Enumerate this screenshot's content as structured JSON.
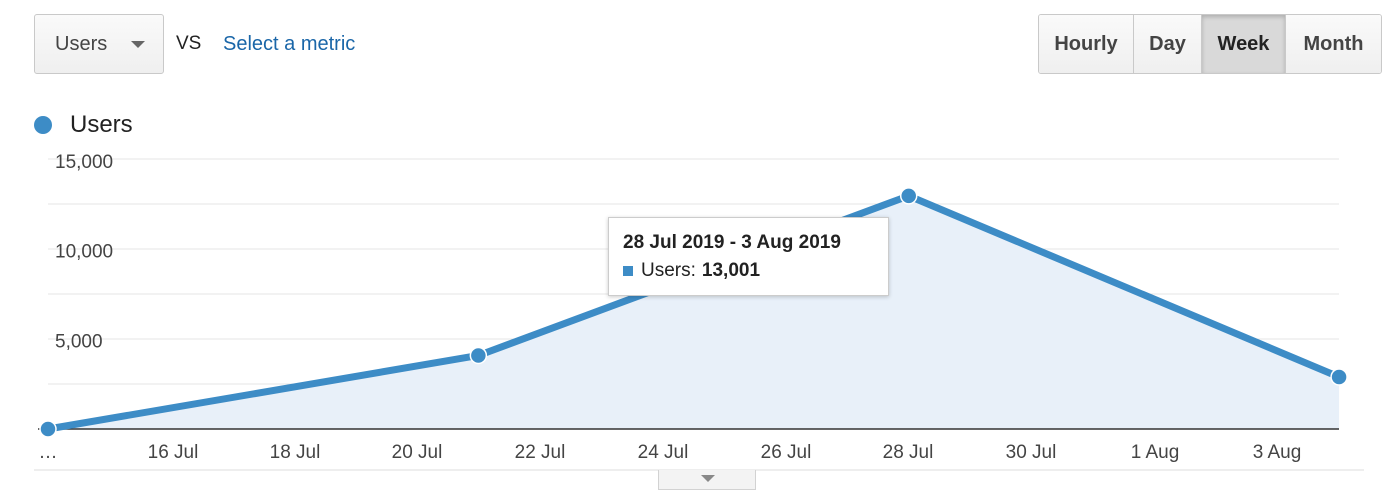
{
  "controls": {
    "primary_metric": "Users",
    "vs_label": "VS",
    "select_metric_label": "Select a metric",
    "range_options": [
      "Hourly",
      "Day",
      "Week",
      "Month"
    ],
    "active_range": "Week"
  },
  "tooltip": {
    "title": "28 Jul 2019 - 3 Aug 2019",
    "series_label": "Users:",
    "value": "13,001"
  },
  "colors": {
    "series": "#3d8cc6",
    "area": "#e8f0f9",
    "link": "#1a66a8"
  },
  "chart_data": {
    "type": "area",
    "series": [
      {
        "name": "Users",
        "points": [
          {
            "x": "2019-07-14",
            "y": 0
          },
          {
            "x": "2019-07-21",
            "y": 4100
          },
          {
            "x": "2019-07-28",
            "y": 13001
          },
          {
            "x": "2019-08-04",
            "y": 2900
          }
        ]
      }
    ],
    "x_tick_labels": [
      "…",
      "16 Jul",
      "18 Jul",
      "20 Jul",
      "22 Jul",
      "24 Jul",
      "26 Jul",
      "28 Jul",
      "30 Jul",
      "1 Aug",
      "3 Aug"
    ],
    "y_tick_labels": [
      "5,000",
      "10,000",
      "15,000"
    ],
    "y_ticks": [
      5000,
      10000,
      15000
    ],
    "ylim": [
      0,
      15000
    ],
    "grid": true,
    "legend": "top-left"
  }
}
